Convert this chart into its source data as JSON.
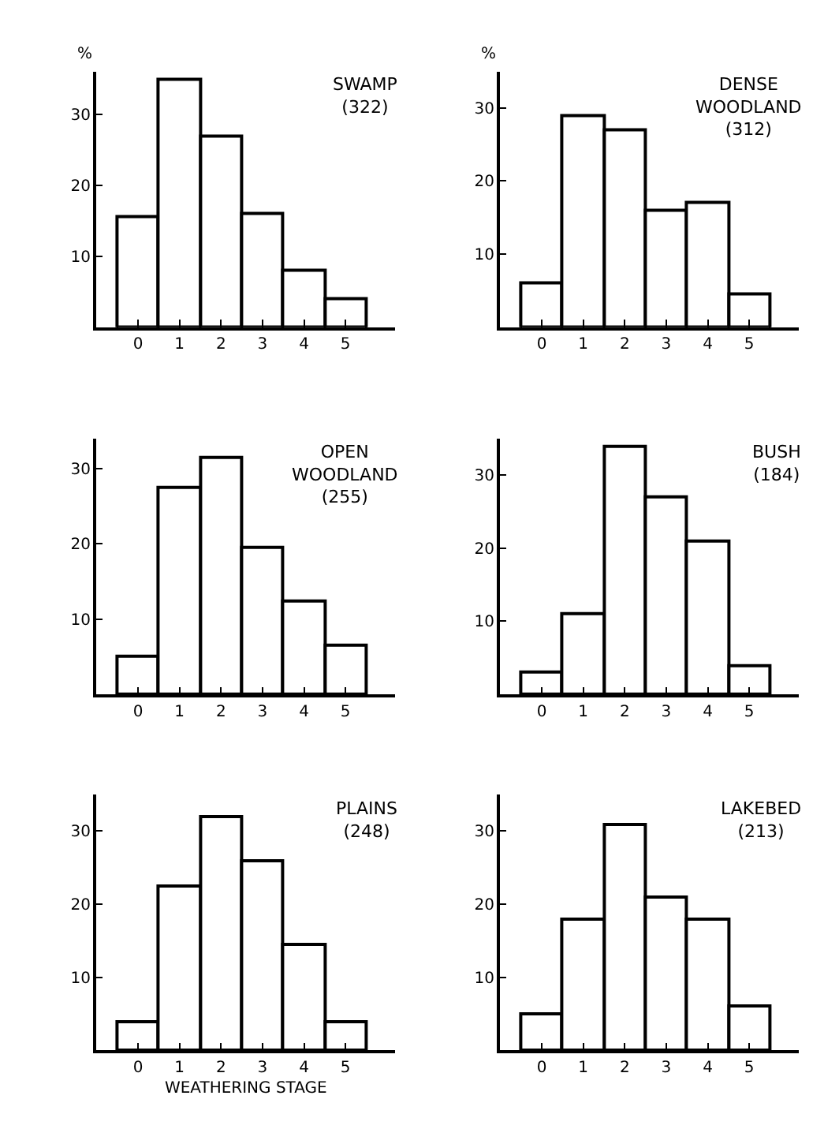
{
  "chart_data": [
    {
      "type": "histogram",
      "title": "SWAMP",
      "subtitle": "(322)",
      "ylabel": "%",
      "bins": [
        -0.5,
        0.5,
        1.5,
        2.5,
        3.5,
        4.5,
        5.5
      ],
      "values": [
        15.5,
        35,
        27,
        16,
        8,
        4
      ],
      "color": "#ffffff",
      "xlim": [
        -1,
        6.2
      ],
      "ylim": [
        0,
        36
      ],
      "yticks": [
        10,
        20,
        30
      ],
      "xticks": [
        0,
        1,
        2,
        3,
        4,
        5
      ]
    },
    {
      "type": "histogram",
      "title": "DENSE WOODLAND",
      "subtitle": "(312)",
      "ylabel": "%",
      "bins": [
        -0.5,
        0.5,
        1.5,
        2.5,
        3.5,
        4.5,
        5.5
      ],
      "values": [
        6,
        29,
        27,
        16,
        17,
        4.5
      ],
      "color": "#ffffff",
      "xlim": [
        -1,
        6.2
      ],
      "ylim": [
        0,
        35
      ],
      "yticks": [
        10,
        20,
        30
      ],
      "xticks": [
        0,
        1,
        2,
        3,
        4,
        5
      ]
    },
    {
      "type": "histogram",
      "title": "OPEN WOODLAND",
      "subtitle": "(255)",
      "bins": [
        -0.5,
        0.5,
        1.5,
        2.5,
        3.5,
        4.5,
        5.5
      ],
      "values": [
        5,
        27.5,
        31.5,
        19.5,
        12.5,
        6.5
      ],
      "color": "#ffffff",
      "xlim": [
        -1,
        6.2
      ],
      "ylim": [
        0,
        34
      ],
      "yticks": [
        10,
        20,
        30
      ],
      "xticks": [
        0,
        1,
        2,
        3,
        4,
        5
      ]
    },
    {
      "type": "histogram",
      "title": "BUSH",
      "subtitle": "(184)",
      "bins": [
        -0.5,
        0.5,
        1.5,
        2.5,
        3.5,
        4.5,
        5.5
      ],
      "values": [
        3,
        11,
        34,
        27,
        21,
        4
      ],
      "color": "#ffffff",
      "xlim": [
        -1,
        6.2
      ],
      "ylim": [
        0,
        35
      ],
      "yticks": [
        10,
        20,
        30
      ],
      "xticks": [
        0,
        1,
        2,
        3,
        4,
        5
      ]
    },
    {
      "type": "histogram",
      "title": "PLAINS",
      "subtitle": "(248)",
      "xlabel": "WEATHERING STAGE",
      "bins": [
        -0.5,
        0.5,
        1.5,
        2.5,
        3.5,
        4.5,
        5.5
      ],
      "values": [
        4,
        22.5,
        32,
        26,
        14.5,
        4
      ],
      "color": "#ffffff",
      "xlim": [
        -1,
        6.2
      ],
      "ylim": [
        0,
        35
      ],
      "yticks": [
        10,
        20,
        30
      ],
      "xticks": [
        0,
        1,
        2,
        3,
        4,
        5
      ]
    },
    {
      "type": "histogram",
      "title": "LAKEBED",
      "subtitle": "(213)",
      "bins": [
        -0.5,
        0.5,
        1.5,
        2.5,
        3.5,
        4.5,
        5.5
      ],
      "values": [
        5,
        18,
        31,
        21,
        18,
        6
      ],
      "color": "#ffffff",
      "xlim": [
        -1,
        6.2
      ],
      "ylim": [
        0,
        35
      ],
      "yticks": [
        10,
        20,
        30
      ],
      "xticks": [
        0,
        1,
        2,
        3,
        4,
        5
      ]
    }
  ]
}
